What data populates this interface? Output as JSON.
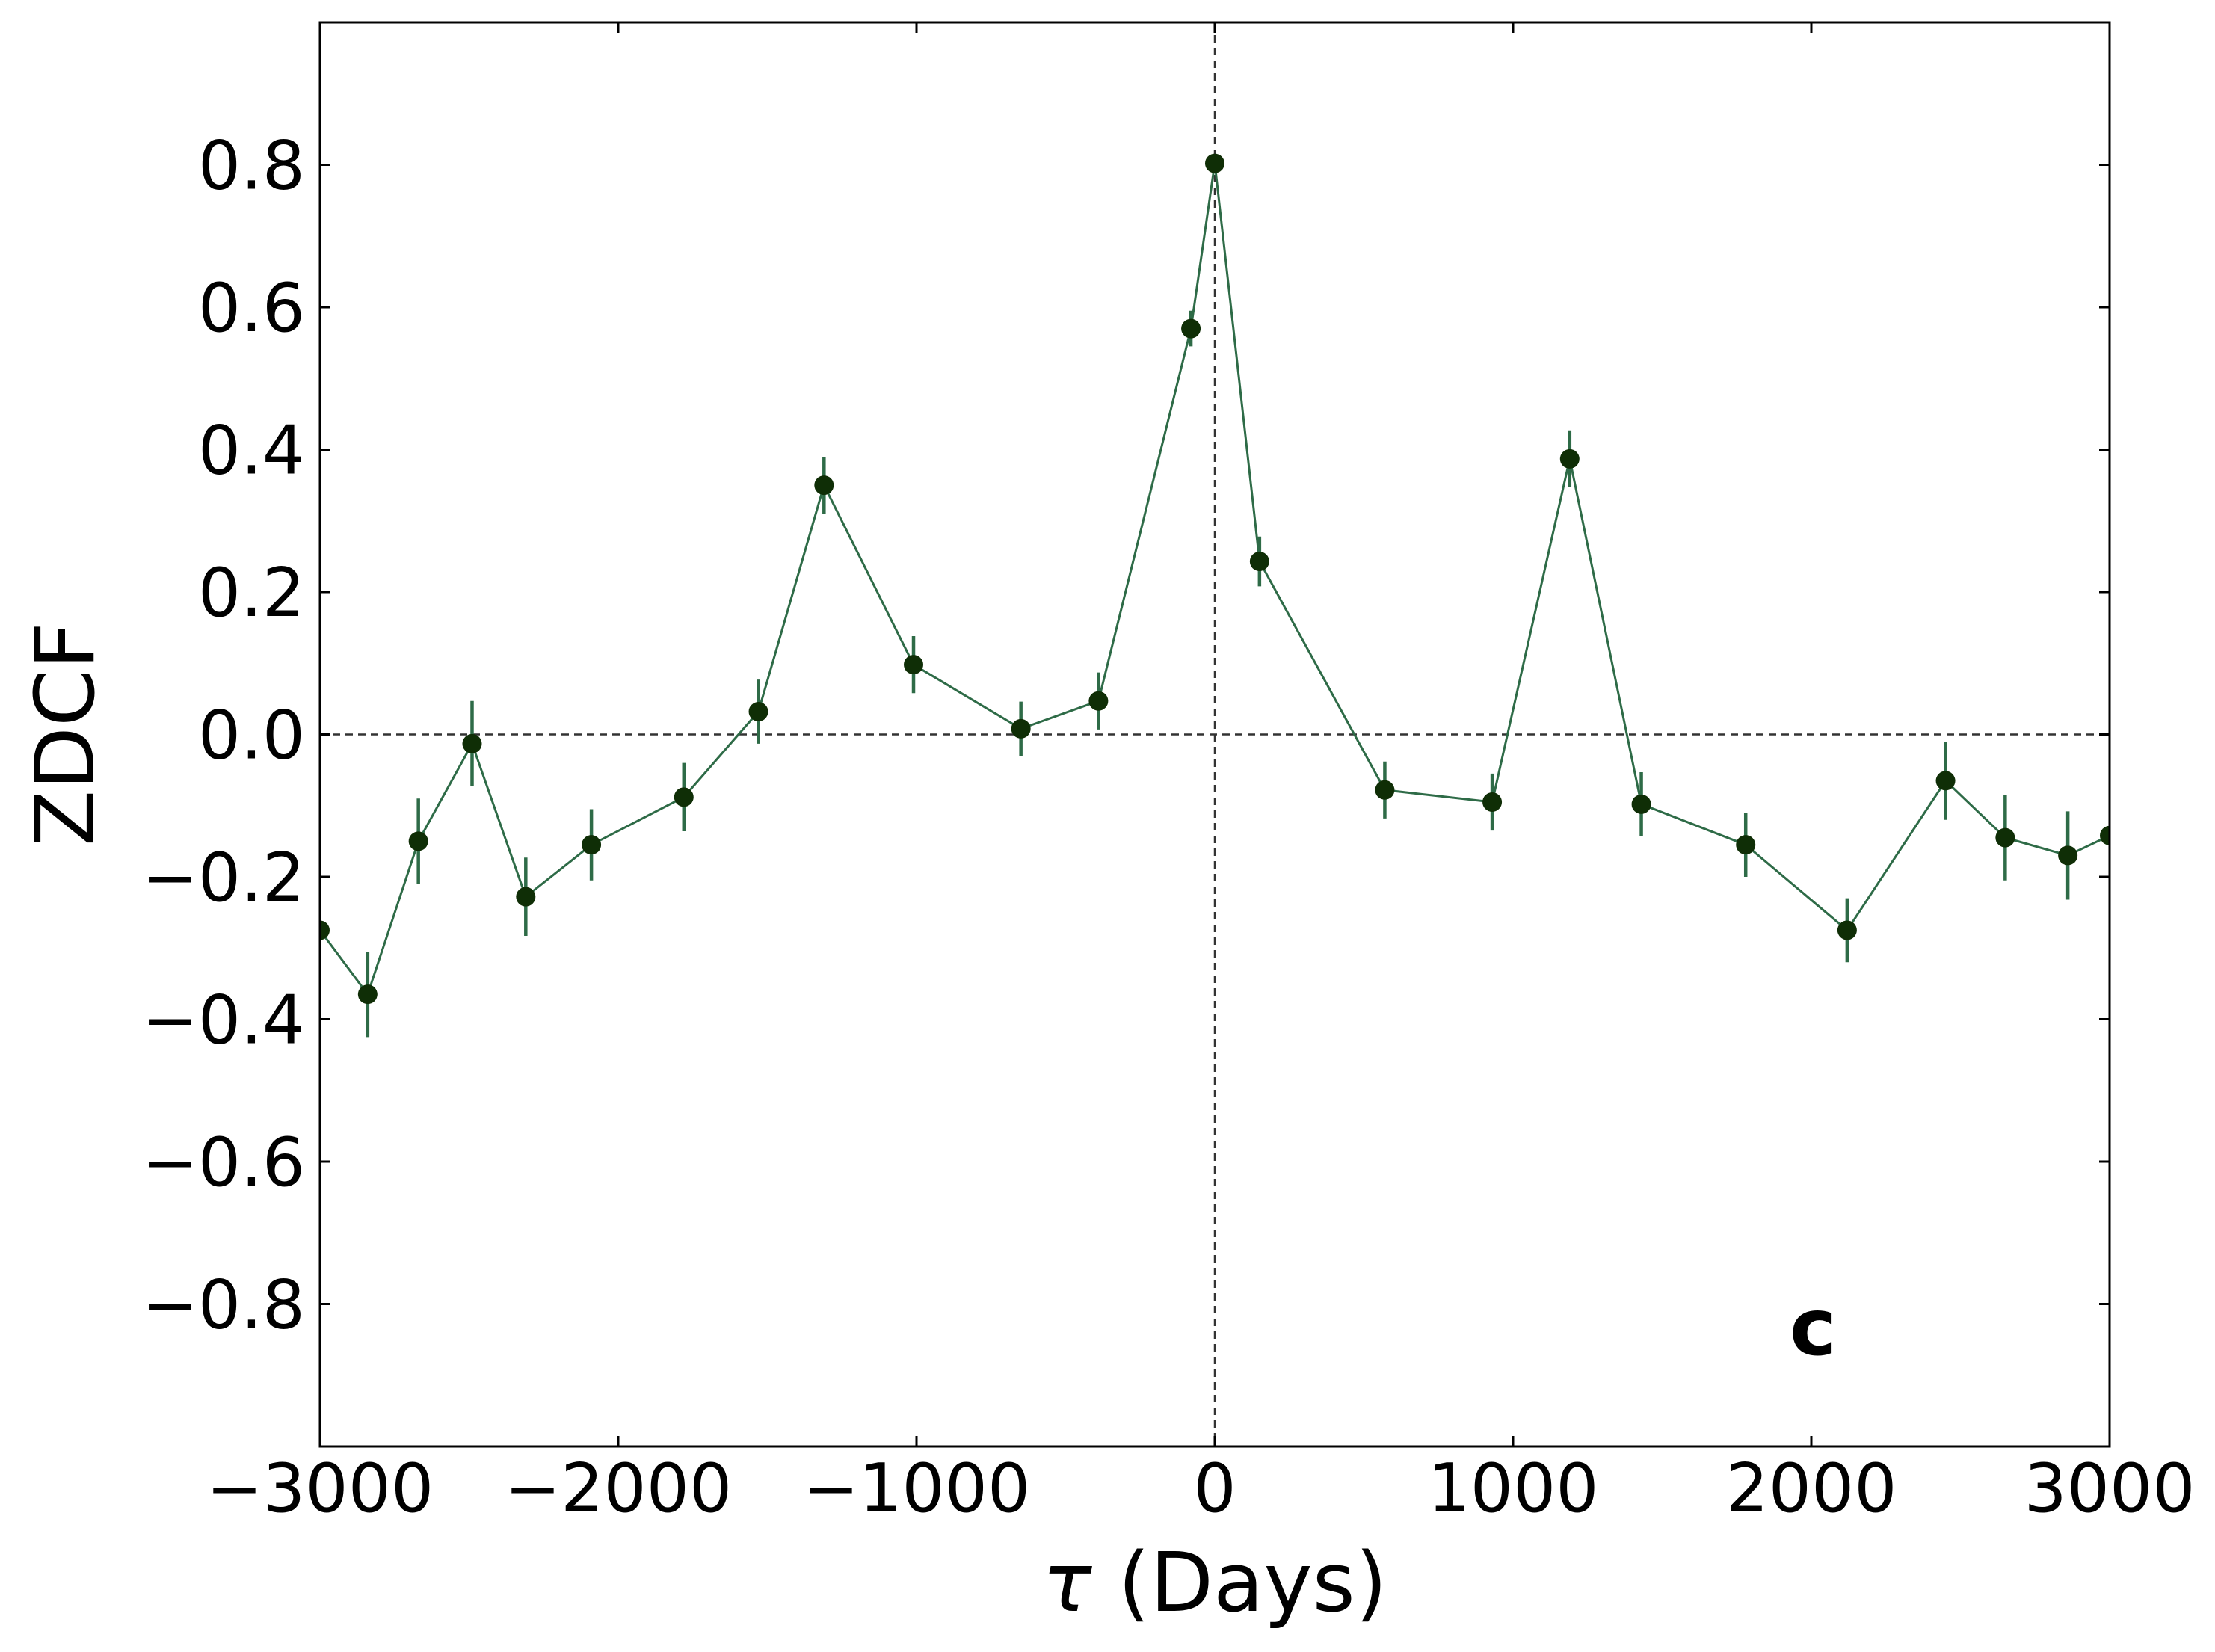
{
  "chart_data": {
    "type": "scatter",
    "title": "",
    "xlabel_symbol": "τ",
    "xlabel_rest": " (Days)",
    "ylabel": "ZDCF",
    "panel_label": "c",
    "xlim": [
      -3000,
      3000
    ],
    "ylim": [
      -1.0,
      1.0
    ],
    "xticks": [
      -3000,
      -2000,
      -1000,
      0,
      1000,
      2000,
      3000
    ],
    "xtick_labels": [
      "−3000",
      "−2000",
      "−1000",
      "0",
      "1000",
      "2000",
      "3000"
    ],
    "yticks": [
      0.8,
      0.6,
      0.4,
      0.2,
      0.0,
      -0.2,
      -0.4,
      -0.6,
      -0.8
    ],
    "ytick_labels": [
      "0.8",
      "0.6",
      "0.4",
      "0.2",
      "0.0",
      "−0.2",
      "−0.4",
      "−0.6",
      "−0.8"
    ],
    "reference_lines": {
      "x": 0,
      "y": 0
    },
    "grid": false,
    "colors": {
      "line": "#2e6b47",
      "marker": "#0f2e06",
      "errorbar": "#2e6b47",
      "refline": "#333333"
    },
    "series": [
      {
        "x": [
          -3000,
          -2840,
          -2670,
          -2490,
          -2310,
          -2090,
          -1780,
          -1530,
          -1310,
          -1010,
          -650,
          -390,
          -80,
          0,
          150,
          570,
          930,
          1190,
          1430,
          1780,
          2120,
          2450,
          2650,
          2860,
          3000
        ],
        "y": [
          -0.275,
          -0.365,
          -0.15,
          -0.013,
          -0.228,
          -0.155,
          -0.088,
          0.032,
          0.35,
          0.098,
          0.008,
          0.047,
          0.57,
          0.802,
          0.243,
          -0.078,
          -0.095,
          0.387,
          -0.098,
          -0.155,
          -0.275,
          -0.065,
          -0.145,
          -0.17,
          -0.142
        ],
        "err": [
          0.0,
          0.06,
          0.06,
          0.06,
          0.055,
          0.05,
          0.048,
          0.045,
          0.04,
          0.04,
          0.038,
          0.04,
          0.025,
          0.01,
          0.035,
          0.04,
          0.04,
          0.04,
          0.045,
          0.045,
          0.045,
          0.055,
          0.06,
          0.062,
          0.0
        ]
      }
    ]
  }
}
